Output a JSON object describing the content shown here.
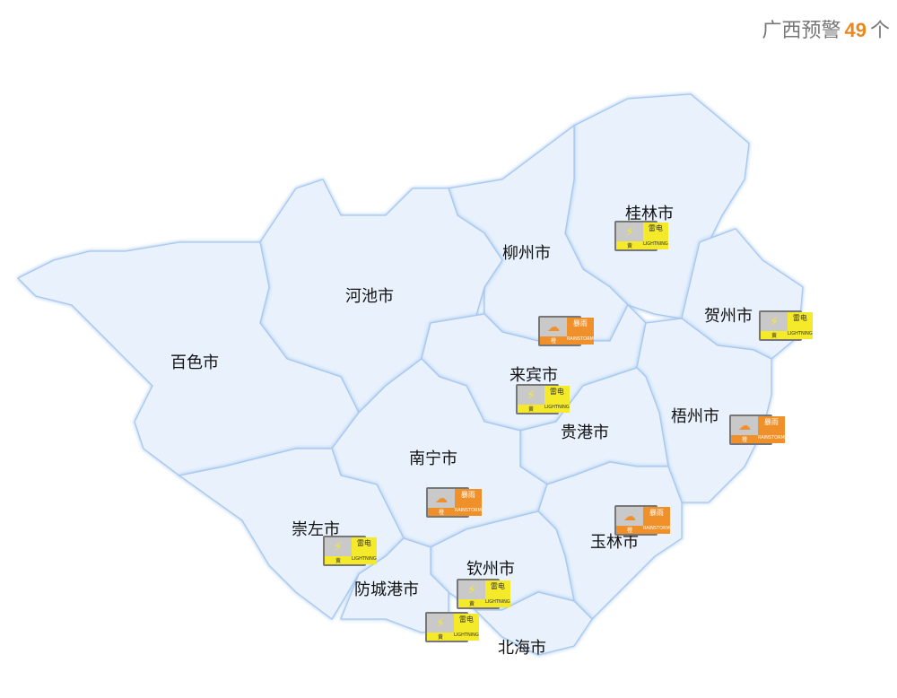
{
  "header": {
    "prefix": "广西预警",
    "count": "49",
    "suffix": "个"
  },
  "colors": {
    "region_fill": "#e8f1fc",
    "border": "#a9c8ee",
    "orange": "#f0902a",
    "yellow": "#f5ea2a"
  },
  "cities": [
    "桂林市",
    "柳州市",
    "河池市",
    "贺州市",
    "百色市",
    "来宾市",
    "梧州市",
    "贵港市",
    "南宁市",
    "崇左市",
    "玉林市",
    "钦州市",
    "防城港市",
    "北海市"
  ],
  "warnings": [
    {
      "city": "桂林市",
      "type": "雷电",
      "level": "黄",
      "en": "LIGHTNING",
      "icon": "lightning-icon"
    },
    {
      "city": "贺州市",
      "type": "雷电",
      "level": "黄",
      "en": "LIGHTNING",
      "icon": "lightning-icon"
    },
    {
      "city": "柳州市",
      "type": "暴雨",
      "level": "橙",
      "en": "RAINSTORM",
      "icon": "rainstorm-icon"
    },
    {
      "city": "来宾市",
      "type": "雷电",
      "level": "黄",
      "en": "LIGHTNING",
      "icon": "lightning-icon"
    },
    {
      "city": "梧州市",
      "type": "暴雨",
      "level": "橙",
      "en": "RAINSTORM",
      "icon": "rainstorm-icon"
    },
    {
      "city": "南宁市",
      "type": "暴雨",
      "level": "橙",
      "en": "RAINSTORM",
      "icon": "rainstorm-icon"
    },
    {
      "city": "玉林市",
      "type": "暴雨",
      "level": "橙",
      "en": "RAINSTORM",
      "icon": "rainstorm-icon"
    },
    {
      "city": "崇左市",
      "type": "雷电",
      "level": "黄",
      "en": "LIGHTNING",
      "icon": "lightning-icon"
    },
    {
      "city": "钦州市",
      "type": "雷电",
      "level": "黄",
      "en": "LIGHTNING",
      "icon": "lightning-icon"
    },
    {
      "city": "防城港市",
      "type": "雷电",
      "level": "黄",
      "en": "LIGHTNING",
      "icon": "lightning-icon"
    }
  ]
}
